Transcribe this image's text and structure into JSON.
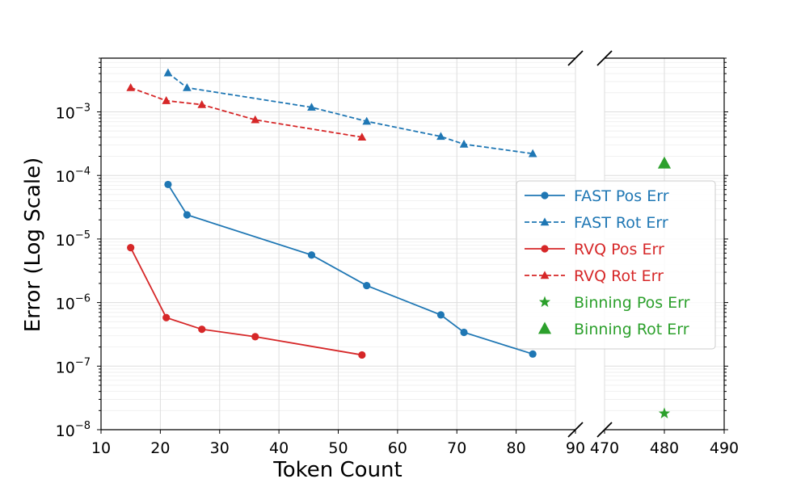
{
  "chart_data": {
    "type": "line",
    "title": "",
    "xlabel": "Token Count",
    "ylabel": "Error (Log Scale)",
    "yscale": "log",
    "ylim": [
      1e-08,
      0.007
    ],
    "grid": true,
    "axes": [
      {
        "xlim": [
          10,
          90
        ],
        "xticks": [
          10,
          20,
          30,
          40,
          50,
          60,
          70,
          80,
          90
        ],
        "xtick_labels": [
          "10",
          "20",
          "30",
          "40",
          "50",
          "60",
          "70",
          "80",
          "90"
        ]
      },
      {
        "xlim": [
          470,
          490
        ],
        "xticks": [
          470,
          480,
          490
        ],
        "xtick_labels": [
          "470",
          "480",
          "490"
        ]
      }
    ],
    "yticks": [
      {
        "value": 1e-08,
        "base": "10",
        "exp": "−8"
      },
      {
        "value": 1e-07,
        "base": "10",
        "exp": "−7"
      },
      {
        "value": 1e-06,
        "base": "10",
        "exp": "−6"
      },
      {
        "value": 1e-05,
        "base": "10",
        "exp": "−5"
      },
      {
        "value": 0.0001,
        "base": "10",
        "exp": "−4"
      },
      {
        "value": 0.001,
        "base": "10",
        "exp": "−3"
      }
    ],
    "legend_position": "center-right",
    "series": [
      {
        "name": "FAST Pos Err",
        "color": "#1f77b4",
        "marker": "circle",
        "line": "solid",
        "x": [
          21.3,
          24.5,
          45.5,
          54.8,
          67.3,
          71.2,
          82.8
        ],
        "y": [
          7.2e-05,
          2.4e-05,
          5.6e-06,
          1.85e-06,
          6.4e-07,
          3.4e-07,
          1.55e-07
        ]
      },
      {
        "name": "FAST Rot Err",
        "color": "#1f77b4",
        "marker": "triangle",
        "line": "dashed",
        "x": [
          21.3,
          24.5,
          45.5,
          54.8,
          67.3,
          71.2,
          82.8
        ],
        "y": [
          0.0041,
          0.0024,
          0.00118,
          0.00071,
          0.00041,
          0.00031,
          0.00022
        ]
      },
      {
        "name": "RVQ Pos Err",
        "color": "#d62728",
        "marker": "circle",
        "line": "solid",
        "x": [
          15,
          21,
          27,
          36,
          54
        ],
        "y": [
          7.3e-06,
          5.8e-07,
          3.8e-07,
          2.9e-07,
          1.5e-07
        ]
      },
      {
        "name": "RVQ Rot Err",
        "color": "#d62728",
        "marker": "triangle",
        "line": "dashed",
        "x": [
          15,
          21,
          27,
          36,
          54
        ],
        "y": [
          0.0024,
          0.0015,
          0.0013,
          0.00075,
          0.0004
        ]
      },
      {
        "name": "Binning Pos Err",
        "color": "#2ca02c",
        "marker": "star",
        "line": "none",
        "x": [
          480
        ],
        "y": [
          1.8e-08
        ]
      },
      {
        "name": "Binning Rot Err",
        "color": "#2ca02c",
        "marker": "triangle-large",
        "line": "none",
        "x": [
          480
        ],
        "y": [
          0.000155
        ]
      }
    ]
  }
}
